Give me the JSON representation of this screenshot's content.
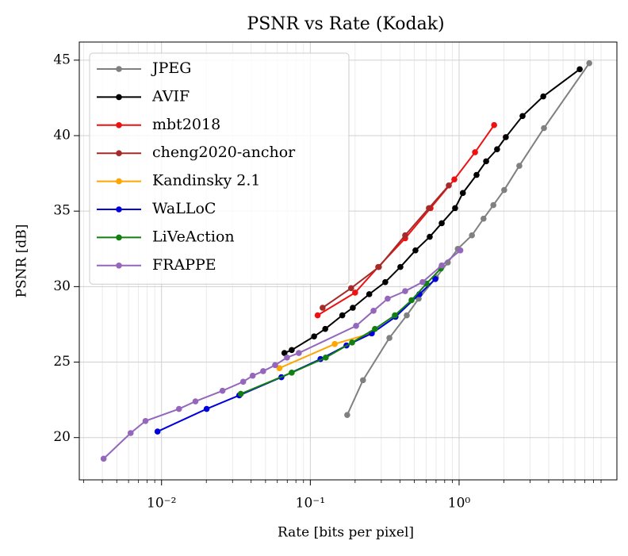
{
  "chart_data": {
    "type": "line",
    "title": "PSNR vs Rate (Kodak)",
    "x_label": "Rate [bits per pixel]",
    "y_label": "PSNR [dB]",
    "xscale": "log",
    "xlim": [
      0.0028,
      11.5
    ],
    "ylim": [
      17.2,
      46.2
    ],
    "xticks": [
      {
        "value": 0.01,
        "label": "10⁻²"
      },
      {
        "value": 0.1,
        "label": "10⁻¹"
      },
      {
        "value": 1,
        "label": "10⁰"
      }
    ],
    "xminorticks": [
      0.003,
      0.004,
      0.005,
      0.006,
      0.007,
      0.008,
      0.009,
      0.02,
      0.03,
      0.04,
      0.05,
      0.06,
      0.07,
      0.08,
      0.09,
      0.2,
      0.3,
      0.4,
      0.5,
      0.6,
      0.7,
      0.8,
      0.9,
      2,
      3,
      4,
      5,
      6,
      7,
      8,
      9
    ],
    "yticks": [
      20,
      25,
      30,
      35,
      40,
      45
    ],
    "grid": true,
    "legend": "upper left",
    "series": [
      {
        "name": "JPEG",
        "color": "#808080",
        "x": [
          0.177,
          0.226,
          0.34,
          0.445,
          0.535,
          0.7,
          0.84,
          0.98,
          1.22,
          1.46,
          1.7,
          2.01,
          2.54,
          3.72,
          7.5
        ],
        "values": [
          21.5,
          23.8,
          26.6,
          28.1,
          29.2,
          30.6,
          31.6,
          32.5,
          33.4,
          34.5,
          35.4,
          36.4,
          38.0,
          40.5,
          44.8
        ]
      },
      {
        "name": "AVIF",
        "color": "#000000",
        "x": [
          0.067,
          0.075,
          0.106,
          0.126,
          0.164,
          0.193,
          0.249,
          0.319,
          0.403,
          0.509,
          0.635,
          0.764,
          0.94,
          1.06,
          1.31,
          1.52,
          1.8,
          2.06,
          2.67,
          3.68,
          6.47
        ],
        "values": [
          25.6,
          25.8,
          26.7,
          27.2,
          28.1,
          28.6,
          29.5,
          30.3,
          31.3,
          32.4,
          33.3,
          34.2,
          35.2,
          36.2,
          37.4,
          38.3,
          39.1,
          39.9,
          41.3,
          42.6,
          44.4
        ]
      },
      {
        "name": "mbt2018",
        "color": "#ee1111",
        "x": [
          0.112,
          0.2,
          0.286,
          0.434,
          0.643,
          0.929,
          1.28,
          1.72
        ],
        "values": [
          28.1,
          29.6,
          31.3,
          33.2,
          35.2,
          37.1,
          38.9,
          40.7
        ]
      },
      {
        "name": "cheng2020-anchor",
        "color": "#a52a2a",
        "x": [
          0.121,
          0.188,
          0.289,
          0.434,
          0.627,
          0.853
        ],
        "values": [
          28.6,
          29.9,
          31.3,
          33.4,
          35.2,
          36.7
        ]
      },
      {
        "name": "Kandinsky 2.1",
        "color": "#ffa500",
        "x": [
          0.062,
          0.146,
          0.256
        ],
        "values": [
          24.6,
          26.2,
          26.9
        ]
      },
      {
        "name": "WaLLoC",
        "color": "#0000dd",
        "x": [
          0.0094,
          0.0201,
          0.0333,
          0.0639,
          0.117,
          0.175,
          0.259,
          0.374,
          0.541,
          0.692
        ],
        "values": [
          20.4,
          21.9,
          22.8,
          24.0,
          25.2,
          26.1,
          26.9,
          28.0,
          29.5,
          30.5
        ]
      },
      {
        "name": "LiVeAction",
        "color": "#118011",
        "x": [
          0.0341,
          0.075,
          0.127,
          0.191,
          0.272,
          0.37,
          0.479,
          0.604,
          0.754
        ],
        "values": [
          22.9,
          24.3,
          25.3,
          26.3,
          27.2,
          28.1,
          29.1,
          30.2,
          31.2
        ]
      },
      {
        "name": "FRAPPE",
        "color": "#9467bd",
        "x": [
          0.00408,
          0.0062,
          0.0078,
          0.0131,
          0.0169,
          0.0257,
          0.0354,
          0.041,
          0.0482,
          0.058,
          0.0697,
          0.0837,
          0.203,
          0.266,
          0.331,
          0.434,
          0.568,
          0.764,
          1.02
        ],
        "values": [
          18.6,
          20.3,
          21.1,
          21.9,
          22.4,
          23.1,
          23.7,
          24.1,
          24.4,
          24.8,
          25.3,
          25.6,
          27.4,
          28.4,
          29.2,
          29.7,
          30.3,
          31.4,
          32.4
        ]
      }
    ]
  }
}
